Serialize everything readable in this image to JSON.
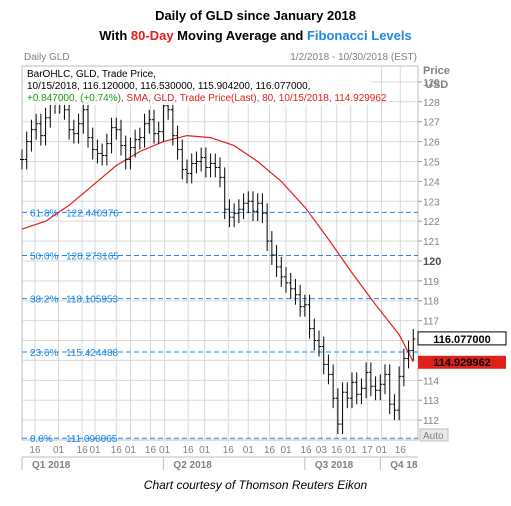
{
  "title": {
    "line1": "Daily of GLD since January 2018",
    "line2_prefix": "With ",
    "line2_ma": "80-Day",
    "line2_middle": " Moving Average and ",
    "line2_fib": "Fibonacci Levels"
  },
  "chart_header": {
    "left_label": "Daily GLD",
    "date_range": "1/2/2018 - 10/30/2018 (EST)",
    "price_label": "Price",
    "currency_label": "USD",
    "auto_label": "Auto"
  },
  "info_box": {
    "line1": "BarOHLC, GLD, Trade Price,",
    "line2": "10/15/2018, 116.120000, 116.530000, 115.904200, 116.077000,",
    "line3_change": "+0.847000, (+0.74%)",
    "line3_sma": ", SMA, GLD, Trade Price(Last), 80, 10/15/2018, 114.929962"
  },
  "price_tags": {
    "last_price": "116.077000",
    "sma_value": "114.929962"
  },
  "caption": "Chart courtesy of Thomson Reuters Eikon",
  "colors": {
    "bars": "#000000",
    "sma": "#e0201b",
    "fib": "#1e88e5",
    "grid": "#d9d9d9",
    "axis_text": "#808080",
    "sma_tag_bg": "#e0201b",
    "price_tag_bg": "#ffffff"
  },
  "chart_data": {
    "type": "line",
    "title": "Daily of GLD since January 2018",
    "subtitle": "With 80-Day Moving Average and Fibonacci Levels",
    "xlabel": "",
    "ylabel": "Price USD",
    "ylim": [
      111,
      129.8
    ],
    "y_ticks": [
      112,
      113,
      114,
      115,
      116,
      117,
      118,
      119,
      120,
      121,
      122,
      123,
      124,
      125,
      126,
      127,
      128,
      129
    ],
    "bold_y_ticks": [
      120,
      115
    ],
    "x_day_ticks": [
      {
        "label": "16",
        "x": 0.055
      },
      {
        "label": "01",
        "x": 0.155
      },
      {
        "label": "16",
        "x": 0.255
      },
      {
        "label": "01",
        "x": 0.31
      },
      {
        "label": "16",
        "x": 0.4
      },
      {
        "label": "01",
        "x": 0.46
      },
      {
        "label": "16",
        "x": 0.545
      },
      {
        "label": "01",
        "x": 0.605
      },
      {
        "label": "16",
        "x": 0.705
      },
      {
        "label": "01",
        "x": 0.775
      },
      {
        "label": "16",
        "x": 0.875
      },
      {
        "label": "01",
        "x": 0.96
      },
      {
        "label": "16",
        "x": 1.05
      },
      {
        "label": "01",
        "x": 1.12
      },
      {
        "label": "16",
        "x": 1.205
      },
      {
        "label": "03",
        "x": 1.27
      },
      {
        "label": "16",
        "x": 1.335
      },
      {
        "label": "01",
        "x": 1.395
      },
      {
        "label": "17",
        "x": 1.465
      },
      {
        "label": "01",
        "x": 1.525
      },
      {
        "label": "16",
        "x": 1.605
      }
    ],
    "quarters": [
      {
        "label": "Q1 2018",
        "x": 0.0
      },
      {
        "label": "Q2 2018",
        "x": 0.6
      },
      {
        "label": "Q3 2018",
        "x": 1.2
      },
      {
        "label": "Q4 18",
        "x": 1.52
      }
    ],
    "fib_levels": [
      {
        "label": "61.8%",
        "value": 122.440376,
        "value_text": "122.440376"
      },
      {
        "label": "50.0%",
        "value": 120.273165,
        "value_text": "120.273165"
      },
      {
        "label": "38.2%",
        "value": 118.105953,
        "value_text": "118.105953"
      },
      {
        "label": "23.6%",
        "value": 115.424488,
        "value_text": "115.424488"
      },
      {
        "label": "0.0%",
        "value": 111.090065,
        "value_text": "111.090065"
      }
    ],
    "series": [
      {
        "name": "Trade Price",
        "style": "ohlc",
        "points": [
          [
            0.0,
            125.1
          ],
          [
            0.02,
            126.0
          ],
          [
            0.04,
            126.6
          ],
          [
            0.06,
            126.9
          ],
          [
            0.08,
            126.3
          ],
          [
            0.1,
            127.2
          ],
          [
            0.12,
            128.2
          ],
          [
            0.14,
            127.9
          ],
          [
            0.16,
            128.7
          ],
          [
            0.18,
            127.6
          ],
          [
            0.2,
            126.6
          ],
          [
            0.22,
            126.4
          ],
          [
            0.24,
            126.9
          ],
          [
            0.26,
            127.6
          ],
          [
            0.28,
            126.2
          ],
          [
            0.3,
            125.6
          ],
          [
            0.32,
            125.4
          ],
          [
            0.34,
            125.3
          ],
          [
            0.36,
            125.9
          ],
          [
            0.38,
            126.7
          ],
          [
            0.4,
            126.6
          ],
          [
            0.42,
            125.8
          ],
          [
            0.44,
            125.1
          ],
          [
            0.46,
            125.7
          ],
          [
            0.48,
            126.1
          ],
          [
            0.5,
            126.2
          ],
          [
            0.52,
            126.9
          ],
          [
            0.54,
            127.1
          ],
          [
            0.56,
            126.4
          ],
          [
            0.58,
            126.5
          ],
          [
            0.6,
            127.8
          ],
          [
            0.62,
            127.6
          ],
          [
            0.64,
            126.3
          ],
          [
            0.66,
            125.6
          ],
          [
            0.68,
            124.6
          ],
          [
            0.7,
            124.4
          ],
          [
            0.72,
            124.9
          ],
          [
            0.74,
            125.0
          ],
          [
            0.76,
            125.2
          ],
          [
            0.78,
            124.7
          ],
          [
            0.8,
            124.9
          ],
          [
            0.82,
            124.7
          ],
          [
            0.84,
            124.2
          ],
          [
            0.86,
            122.6
          ],
          [
            0.88,
            122.2
          ],
          [
            0.9,
            122.4
          ],
          [
            0.92,
            122.6
          ],
          [
            0.94,
            122.9
          ],
          [
            0.96,
            123.0
          ],
          [
            0.98,
            122.5
          ],
          [
            1.0,
            122.9
          ],
          [
            1.02,
            122.4
          ],
          [
            1.04,
            121.0
          ],
          [
            1.06,
            120.3
          ],
          [
            1.08,
            119.7
          ],
          [
            1.1,
            119.2
          ],
          [
            1.12,
            118.9
          ],
          [
            1.14,
            118.6
          ],
          [
            1.16,
            118.3
          ],
          [
            1.18,
            117.7
          ],
          [
            1.2,
            117.8
          ],
          [
            1.22,
            116.6
          ],
          [
            1.24,
            116.0
          ],
          [
            1.26,
            115.7
          ],
          [
            1.28,
            114.8
          ],
          [
            1.3,
            114.3
          ],
          [
            1.32,
            113.1
          ],
          [
            1.34,
            111.8
          ],
          [
            1.36,
            113.4
          ],
          [
            1.38,
            113.1
          ],
          [
            1.4,
            113.9
          ],
          [
            1.42,
            113.3
          ],
          [
            1.44,
            113.6
          ],
          [
            1.46,
            114.4
          ],
          [
            1.48,
            113.7
          ],
          [
            1.5,
            113.5
          ],
          [
            1.52,
            113.8
          ],
          [
            1.54,
            114.3
          ],
          [
            1.56,
            112.8
          ],
          [
            1.58,
            112.5
          ],
          [
            1.6,
            114.2
          ],
          [
            1.62,
            115.1
          ],
          [
            1.64,
            115.5
          ],
          [
            1.66,
            116.08
          ]
        ]
      },
      {
        "name": "SMA 80",
        "style": "line",
        "points": [
          [
            0.0,
            121.6
          ],
          [
            0.1,
            122.0
          ],
          [
            0.2,
            122.8
          ],
          [
            0.3,
            123.8
          ],
          [
            0.4,
            124.8
          ],
          [
            0.5,
            125.5
          ],
          [
            0.6,
            126.0
          ],
          [
            0.7,
            126.3
          ],
          [
            0.8,
            126.2
          ],
          [
            0.9,
            125.8
          ],
          [
            1.0,
            125.0
          ],
          [
            1.1,
            124.0
          ],
          [
            1.2,
            122.7
          ],
          [
            1.3,
            121.1
          ],
          [
            1.4,
            119.4
          ],
          [
            1.5,
            117.8
          ],
          [
            1.6,
            116.3
          ],
          [
            1.66,
            114.93
          ]
        ]
      }
    ]
  }
}
